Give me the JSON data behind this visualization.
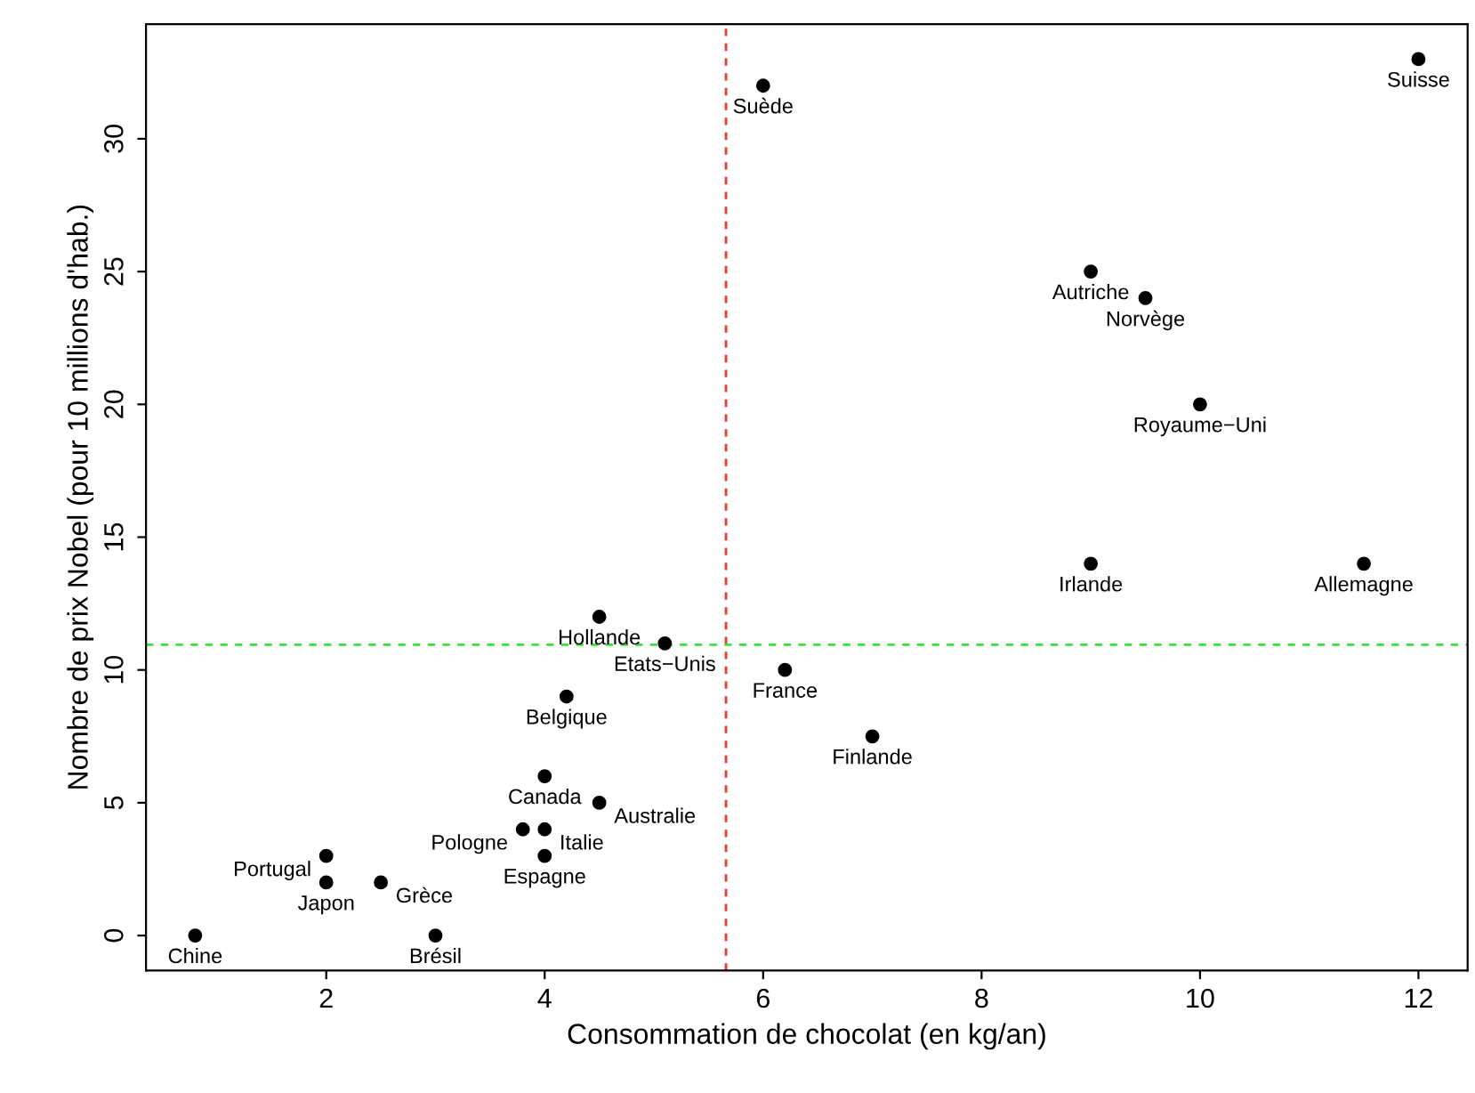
{
  "chart_data": {
    "type": "scatter",
    "xlabel": "Consommation de chocolat (en kg/an)",
    "ylabel": "Nombre de prix Nobel (pour 10 millions d'hab.)",
    "series": [
      {
        "color": "#000000",
        "x": [
          0.8,
          2,
          2,
          2.5,
          3,
          3.8,
          4,
          4,
          4,
          4.5,
          4.2,
          4.5,
          5.1,
          6.2,
          7,
          6,
          9,
          9.5,
          10,
          9,
          11.5,
          12
        ],
        "values": [
          0,
          3,
          2,
          2,
          0,
          4,
          4,
          3,
          6,
          5,
          9,
          12,
          11,
          10,
          7.5,
          32,
          25,
          24,
          20,
          14,
          14,
          33
        ]
      }
    ],
    "annotations": [
      {
        "text": "Chine",
        "x": 0.8,
        "y": 0
      },
      {
        "text": "Portugal",
        "x": 2,
        "y": 3
      },
      {
        "text": "Japon",
        "x": 2,
        "y": 2
      },
      {
        "text": "Grèce",
        "x": 2.5,
        "y": 2
      },
      {
        "text": "Brésil",
        "x": 3,
        "y": 0
      },
      {
        "text": "Pologne",
        "x": 3.8,
        "y": 4
      },
      {
        "text": "Italie",
        "x": 4,
        "y": 4
      },
      {
        "text": "Espagne",
        "x": 4,
        "y": 3
      },
      {
        "text": "Canada",
        "x": 4,
        "y": 6
      },
      {
        "text": "Australie",
        "x": 4.5,
        "y": 5
      },
      {
        "text": "Belgique",
        "x": 4.2,
        "y": 9
      },
      {
        "text": "Hollande",
        "x": 4.5,
        "y": 12
      },
      {
        "text": "Etats−Unis",
        "x": 5.1,
        "y": 11
      },
      {
        "text": "France",
        "x": 6.2,
        "y": 10
      },
      {
        "text": "Finlande",
        "x": 7,
        "y": 7.5
      },
      {
        "text": "Suède",
        "x": 6,
        "y": 32
      },
      {
        "text": "Autriche",
        "x": 9,
        "y": 25
      },
      {
        "text": "Norvège",
        "x": 9.5,
        "y": 24
      },
      {
        "text": "Royaume−Uni",
        "x": 10,
        "y": 20
      },
      {
        "text": "Irlande",
        "x": 9,
        "y": 14
      },
      {
        "text": "Allemagne",
        "x": 11.5,
        "y": 14
      },
      {
        "text": "Suisse",
        "x": 12,
        "y": 33
      }
    ],
    "ref_lines": [
      {
        "axis": "x",
        "value": 5.66,
        "color": "#e8392f",
        "line_style": "dashed"
      },
      {
        "axis": "y",
        "value": 10.95,
        "color": "#3ddf3d",
        "line_style": "dashed"
      }
    ],
    "xlim": [
      0.35,
      12.45
    ],
    "ylim": [
      -1.32,
      34.32
    ],
    "xticks": [
      2,
      4,
      6,
      8,
      10,
      12
    ],
    "yticks": [
      0,
      5,
      10,
      15,
      20,
      25,
      30
    ],
    "grid": false,
    "legend": false,
    "marker": "circle"
  }
}
